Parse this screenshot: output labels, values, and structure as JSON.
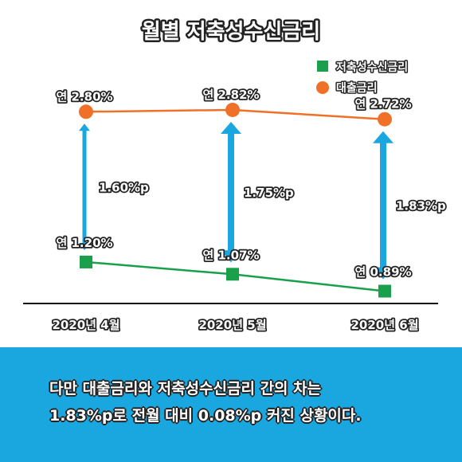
{
  "chart_data": {
    "type": "line",
    "title": "월별 저축성수신금리",
    "categories": [
      "2020년 4월",
      "2020년 5월",
      "2020년 6월"
    ],
    "series": [
      {
        "name": "저축성수신금리",
        "values": [
          1.2,
          1.07,
          0.89
        ],
        "labels": [
          "연 1.20%",
          "연 1.07%",
          "연 0.89%"
        ],
        "color": "#1aa04a",
        "marker": "square"
      },
      {
        "name": "대출금리",
        "values": [
          2.8,
          2.82,
          2.72
        ],
        "labels": [
          "연 2.80%",
          "연 2.82%",
          "연 2.72%"
        ],
        "color": "#f07028",
        "marker": "circle"
      }
    ],
    "gap_annotations": [
      "1.60%p",
      "1.75%p",
      "1.83%p"
    ],
    "arrow_color": "#1aa7df",
    "legend_position": "top-right"
  },
  "caption": {
    "line1": "다만 대출금리와 저축성수신금리 간의 차는",
    "line2": "1.83%p로 전월 대비 0.08%p 커진 상황이다."
  },
  "colors": {
    "banner": "#1aa7df"
  }
}
